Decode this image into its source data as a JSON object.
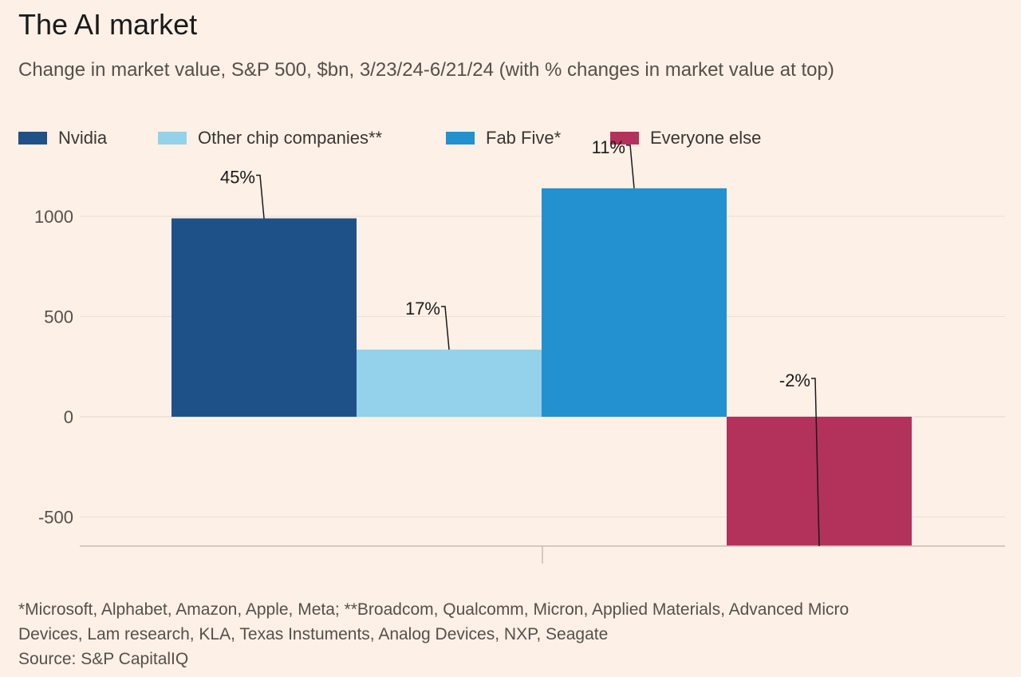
{
  "header": {
    "title": "The AI market",
    "subtitle": "Change in market value, S&P 500, $bn, 3/23/24-6/21/24 (with % changes in market value at top)"
  },
  "legend": [
    {
      "label": "Nvidia",
      "color": "#1f5189"
    },
    {
      "label": "Other chip companies**",
      "color": "#94d1ea"
    },
    {
      "label": "Fab Five*",
      "color": "#2390d0"
    },
    {
      "label": "Everyone else",
      "color": "#b3325c"
    }
  ],
  "chart_data": {
    "type": "bar",
    "categories": [
      "Nvidia",
      "Other chip companies**",
      "Fab Five*",
      "Everyone else"
    ],
    "values": [
      990,
      335,
      1140,
      -650
    ],
    "colors": [
      "#1f5189",
      "#94d1ea",
      "#2390d0",
      "#b3325c"
    ],
    "annotations": [
      "45%",
      "17%",
      "11%",
      "-2%"
    ],
    "yticks": [
      1000,
      500,
      0,
      -500
    ],
    "ylim": [
      -650,
      1300
    ],
    "grid": true
  },
  "footer": {
    "note_line1": "*Microsoft, Alphabet, Amazon, Apple, Meta; **Broadcom, Qualcomm, Micron, Applied Materials, Advanced Micro",
    "note_line2": "Devices, Lam research, KLA, Texas Instuments, Analog Devices, NXP, Seagate",
    "source": "Source: S&P CapitalIQ"
  }
}
